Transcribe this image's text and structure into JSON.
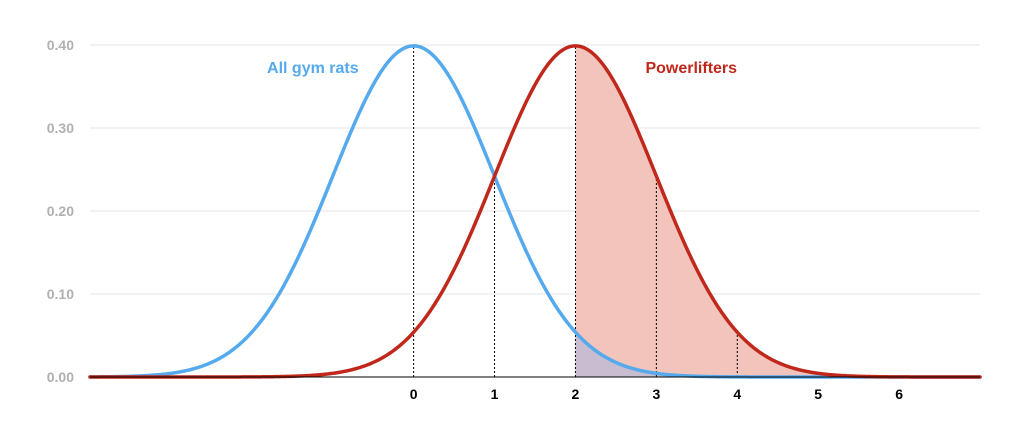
{
  "chart_data": {
    "type": "line",
    "title": "",
    "xlabel": "",
    "ylabel": "",
    "xlim": [
      -4,
      7
    ],
    "ylim": [
      0,
      0.4
    ],
    "y_ticks": [
      "0.00",
      "0.10",
      "0.20",
      "0.30",
      "0.40"
    ],
    "x_ticks": [
      "0",
      "1",
      "2",
      "3",
      "4",
      "5",
      "6"
    ],
    "grid": "horizontal",
    "series": [
      {
        "name": "All gym rats",
        "color": "#55aaee",
        "distribution": "normal",
        "mean": 0,
        "sd": 1,
        "x": [
          -4,
          -3,
          -2,
          -1,
          0,
          1,
          2,
          3,
          4,
          5,
          6,
          7
        ],
        "values": [
          0.0001,
          0.0044,
          0.054,
          0.242,
          0.399,
          0.242,
          0.054,
          0.0044,
          0.0001,
          0.0,
          0.0,
          0.0
        ]
      },
      {
        "name": "Powerlifters",
        "color": "#c0281c",
        "distribution": "normal",
        "mean": 2,
        "sd": 1,
        "x": [
          -4,
          -3,
          -2,
          -1,
          0,
          1,
          2,
          3,
          4,
          5,
          6,
          7
        ],
        "values": [
          0.0,
          0.0,
          0.0001,
          0.0044,
          0.054,
          0.242,
          0.399,
          0.242,
          0.054,
          0.0044,
          0.0001,
          0.0
        ]
      }
    ],
    "shaded_regions": [
      {
        "series": "Powerlifters",
        "from": 2,
        "to": 7,
        "color": "#f2c4bc"
      },
      {
        "series": "All gym rats",
        "from": 2,
        "to": 7,
        "color": "#c8bcd0"
      }
    ],
    "reference_lines": [
      {
        "x": 0,
        "to_series": "All gym rats"
      },
      {
        "x": 1,
        "to_series": "All gym rats"
      },
      {
        "x": 2,
        "to_series": "Powerlifters"
      },
      {
        "x": 3,
        "to_series": "Powerlifters"
      },
      {
        "x": 4,
        "to_series": "Powerlifters"
      }
    ]
  }
}
